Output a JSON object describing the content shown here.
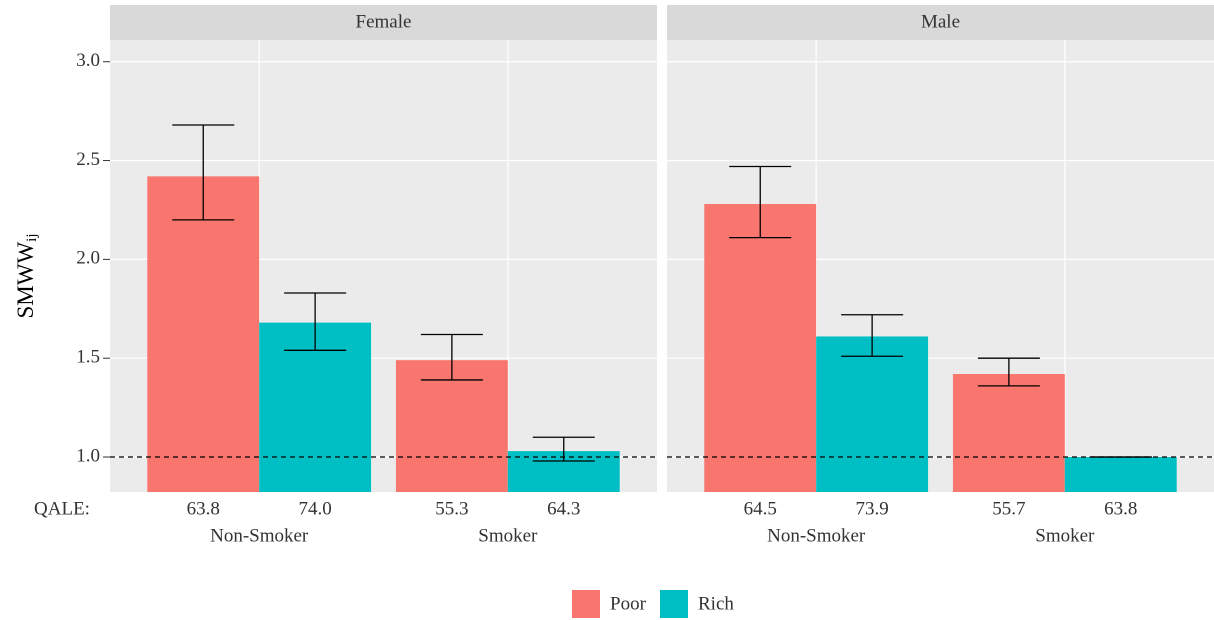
{
  "chart_data": {
    "type": "bar",
    "ylabel": "SMWW",
    "ylabel_sub": "ij",
    "row_label": "QALE:",
    "categories": [
      "Non-Smoker",
      "Smoker"
    ],
    "series": [
      {
        "name": "Poor",
        "color": "#f8766d"
      },
      {
        "name": "Rich",
        "color": "#00bfc4"
      }
    ],
    "panels": [
      {
        "title": "Female",
        "series": [
          {
            "values": [
              2.42,
              1.49
            ],
            "lower": [
              2.2,
              1.39
            ],
            "upper": [
              2.68,
              1.62
            ],
            "qale": [
              "63.8",
              "55.3"
            ]
          },
          {
            "values": [
              1.68,
              1.03
            ],
            "lower": [
              1.54,
              0.98
            ],
            "upper": [
              1.83,
              1.1
            ],
            "qale": [
              "74.0",
              "64.3"
            ]
          }
        ]
      },
      {
        "title": "Male",
        "series": [
          {
            "values": [
              2.28,
              1.42
            ],
            "lower": [
              2.11,
              1.36
            ],
            "upper": [
              2.47,
              1.5
            ],
            "qale": [
              "64.5",
              "55.7"
            ]
          },
          {
            "values": [
              1.61,
              1.0
            ],
            "lower": [
              1.51,
              1.0
            ],
            "upper": [
              1.72,
              1.0
            ],
            "qale": [
              "73.9",
              "63.8"
            ]
          }
        ]
      }
    ],
    "ylim": [
      0.823,
      3.11
    ],
    "yticks": [
      {
        "value": 1,
        "label": "1.0"
      },
      {
        "value": 1.5,
        "label": "1.5"
      },
      {
        "value": 2,
        "label": "2.0"
      },
      {
        "value": 2.5,
        "label": "2.5"
      },
      {
        "value": 3,
        "label": "3.0"
      }
    ],
    "reference_line": 1,
    "grid": true
  }
}
